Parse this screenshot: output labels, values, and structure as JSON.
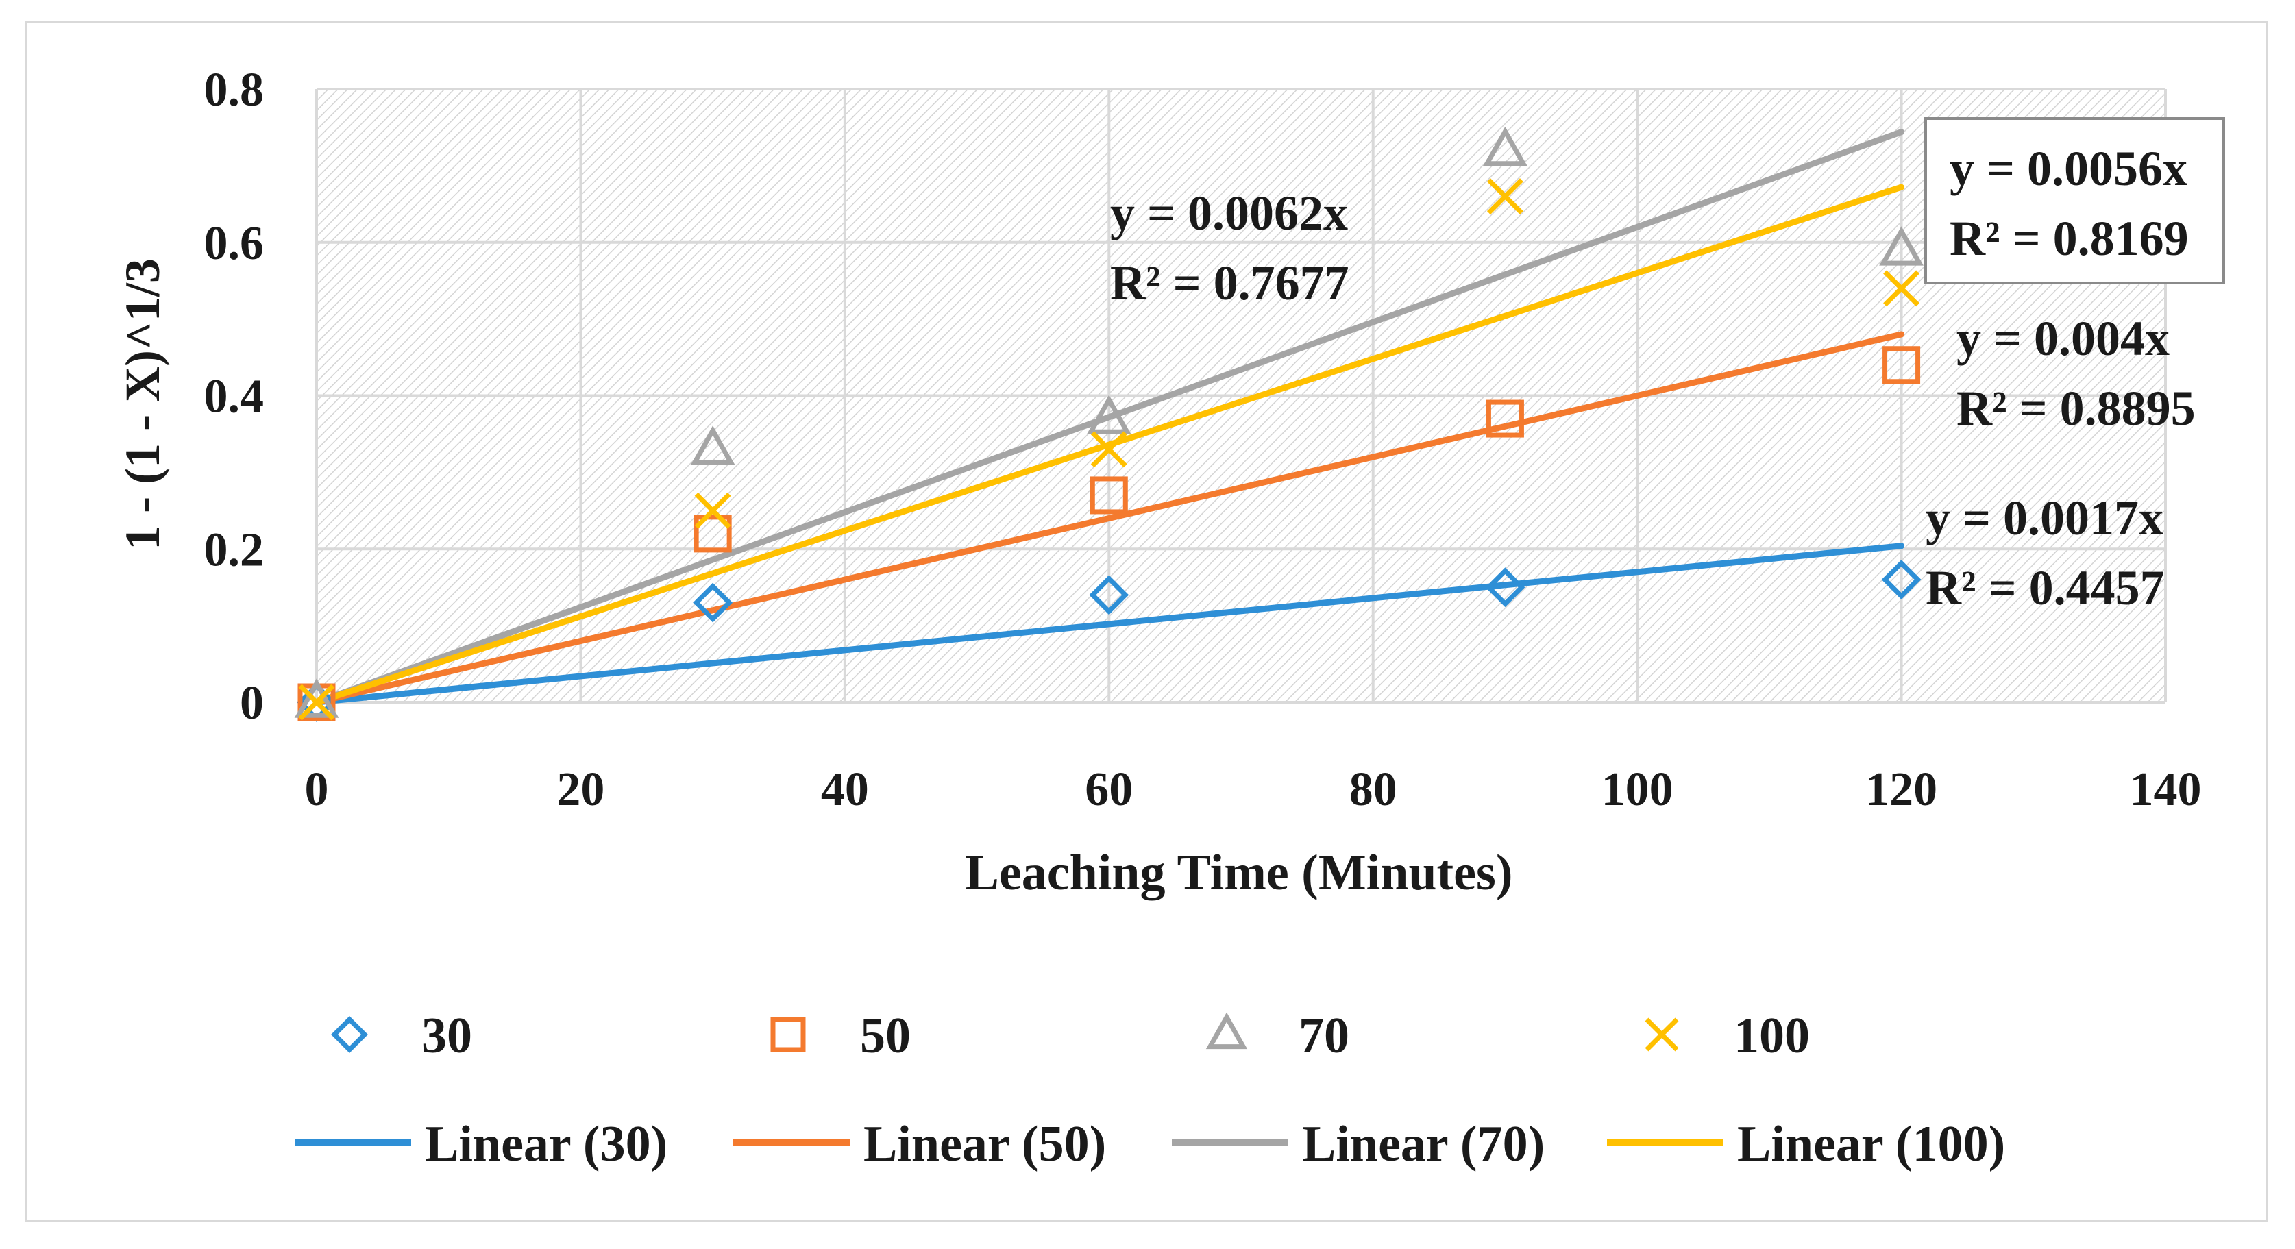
{
  "chart_data": {
    "type": "scatter",
    "title": "",
    "xlabel": "Leaching Time (Minutes)",
    "ylabel": "1 - (1 - X)^1/3",
    "xlim": [
      0,
      140
    ],
    "ylim": [
      0,
      0.8
    ],
    "x_ticks": [
      "0",
      "20",
      "40",
      "60",
      "80",
      "100",
      "120",
      "140"
    ],
    "y_ticks": [
      "0",
      "0.2",
      "0.4",
      "0.6",
      "0.8"
    ],
    "grid": true,
    "plot_background": "hatched",
    "x": [
      0,
      30,
      60,
      90,
      120
    ],
    "series": [
      {
        "name": "30",
        "marker": "diamond",
        "color": "#2E8FD6",
        "values": [
          0,
          0.13,
          0.14,
          0.15,
          0.16
        ],
        "trendline": {
          "name": "Linear (30)",
          "slope": 0.0017,
          "r2": 0.4457,
          "equation": "y = 0.0017x",
          "r2_label": "R² = 0.4457"
        }
      },
      {
        "name": "50",
        "marker": "square",
        "color": "#F47A2E",
        "values": [
          0,
          0.22,
          0.27,
          0.37,
          0.44
        ],
        "trendline": {
          "name": "Linear (50)",
          "slope": 0.004,
          "r2": 0.8895,
          "equation": "y = 0.004x",
          "r2_label": "R² = 0.8895"
        }
      },
      {
        "name": "70",
        "marker": "triangle",
        "color": "#A5A5A5",
        "values": [
          0,
          0.33,
          0.37,
          0.72,
          0.59
        ],
        "trendline": {
          "name": "Linear (70)",
          "slope": 0.0062,
          "r2": 0.7677,
          "equation": "y = 0.0062x",
          "r2_label": "R² = 0.7677"
        }
      },
      {
        "name": "100",
        "marker": "cross",
        "color": "#FFC000",
        "values": [
          0,
          0.25,
          0.33,
          0.66,
          0.54
        ],
        "trendline": {
          "name": "Linear (100)",
          "slope": 0.0056,
          "r2": 0.8169,
          "equation": "y = 0.0056x",
          "r2_label": "R² = 0.8169"
        }
      }
    ],
    "legend_position": "bottom"
  }
}
